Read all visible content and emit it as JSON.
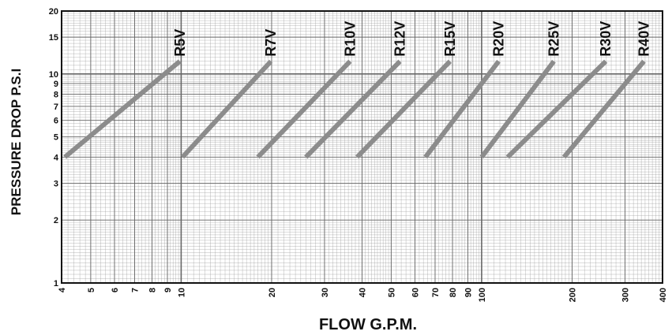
{
  "chart_data": {
    "type": "line",
    "x_scale": "log",
    "y_scale": "log",
    "xlim": [
      4,
      400
    ],
    "ylim": [
      1,
      20
    ],
    "xlabel": "FLOW G.P.M.",
    "ylabel": "PRESSURE DROP P.S.I",
    "grid": true,
    "x_ticks": [
      {
        "value": 4,
        "label": "4"
      },
      {
        "value": 5,
        "label": "5"
      },
      {
        "value": 6,
        "label": "6"
      },
      {
        "value": 7,
        "label": "7"
      },
      {
        "value": 8,
        "label": "8"
      },
      {
        "value": 9,
        "label": "9"
      },
      {
        "value": 10,
        "label": "10"
      },
      {
        "value": 20,
        "label": "20"
      },
      {
        "value": 30,
        "label": "30"
      },
      {
        "value": 40,
        "label": "40"
      },
      {
        "value": 50,
        "label": "50"
      },
      {
        "value": 60,
        "label": "60"
      },
      {
        "value": 70,
        "label": "70"
      },
      {
        "value": 80,
        "label": "80"
      },
      {
        "value": 90,
        "label": "90"
      },
      {
        "value": 100,
        "label": "100"
      },
      {
        "value": 200,
        "label": "200"
      },
      {
        "value": 300,
        "label": "300"
      },
      {
        "value": 400,
        "label": "400"
      }
    ],
    "y_ticks": [
      {
        "value": 1,
        "label": "1"
      },
      {
        "value": 2,
        "label": "2"
      },
      {
        "value": 3,
        "label": "3"
      },
      {
        "value": 4,
        "label": "4"
      },
      {
        "value": 5,
        "label": "5"
      },
      {
        "value": 6,
        "label": "6"
      },
      {
        "value": 7,
        "label": "7"
      },
      {
        "value": 8,
        "label": "8"
      },
      {
        "value": 9,
        "label": "9"
      },
      {
        "value": 10,
        "label": "10"
      },
      {
        "value": 15,
        "label": "15"
      },
      {
        "value": 20,
        "label": "20"
      }
    ],
    "series": [
      {
        "name": "R5V",
        "x": [
          4.1,
          9.9
        ],
        "y": [
          4,
          11.5
        ]
      },
      {
        "name": "R7V",
        "x": [
          10.1,
          19.9
        ],
        "y": [
          4,
          11.5
        ]
      },
      {
        "name": "R10V",
        "x": [
          18.0,
          36.5
        ],
        "y": [
          4,
          11.5
        ]
      },
      {
        "name": "R12V",
        "x": [
          26.0,
          53.5
        ],
        "y": [
          4,
          11.5
        ]
      },
      {
        "name": "R15V",
        "x": [
          38.5,
          78.5
        ],
        "y": [
          4,
          11.5
        ]
      },
      {
        "name": "R20V",
        "x": [
          65.0,
          114.0
        ],
        "y": [
          4,
          11.5
        ]
      },
      {
        "name": "R25V",
        "x": [
          100.0,
          174.0
        ],
        "y": [
          4,
          11.5
        ]
      },
      {
        "name": "R30V",
        "x": [
          122.0,
          259.0
        ],
        "y": [
          4,
          11.5
        ]
      },
      {
        "name": "R40V",
        "x": [
          188.0,
          347.0
        ],
        "y": [
          4,
          11.5
        ]
      }
    ],
    "colors": {
      "line": "#8c8c8c",
      "grid": "#9a9a9a",
      "axis": "#111111",
      "text": "#111111"
    }
  }
}
